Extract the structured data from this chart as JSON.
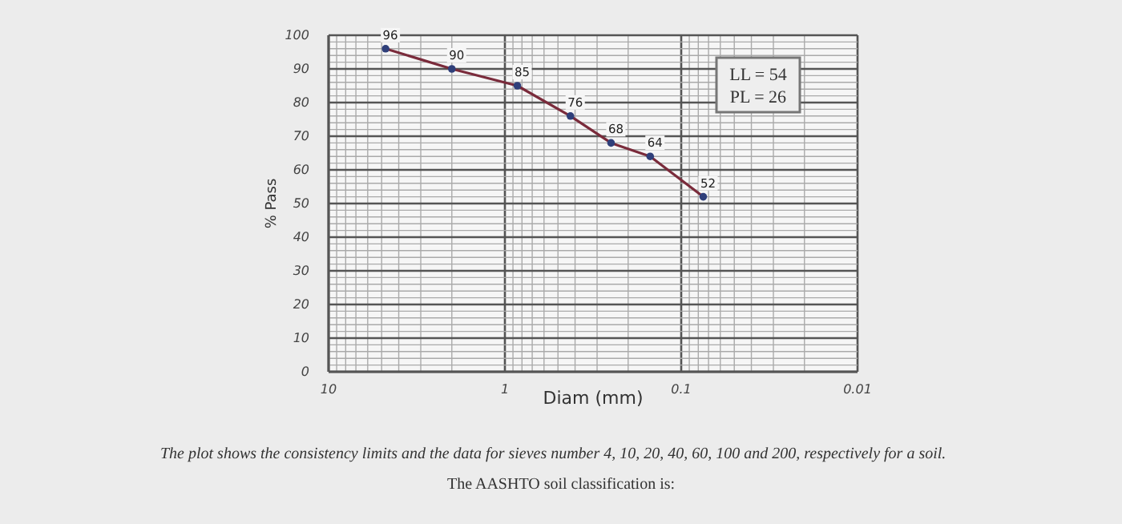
{
  "chart_data": {
    "type": "line",
    "xlabel": "Diam (mm)",
    "ylabel": "% Pass",
    "x": [
      4.75,
      2.0,
      0.85,
      0.425,
      0.25,
      0.15,
      0.075
    ],
    "series": [
      {
        "color": "#7a2b3b",
        "values": [
          96,
          90,
          85,
          76,
          68,
          64,
          52
        ]
      }
    ],
    "xlim": [
      10,
      0.01
    ],
    "xticks": [
      10,
      1,
      0.1,
      0.01
    ],
    "ylim": [
      0,
      100
    ],
    "yticks": [
      0,
      10,
      20,
      30,
      40,
      50,
      60,
      70,
      80,
      90,
      100
    ],
    "log": "x",
    "grid": true,
    "marker": "circle",
    "data_labels": true,
    "annotations": [
      "LL = 54",
      "PL = 26",
      "The plot shows the consistency limits and the data for sieves number 4, 10, 20, 40, 60, 100 and 200, respectively for a soil.",
      "The AASHTO soil classification is:"
    ]
  }
}
